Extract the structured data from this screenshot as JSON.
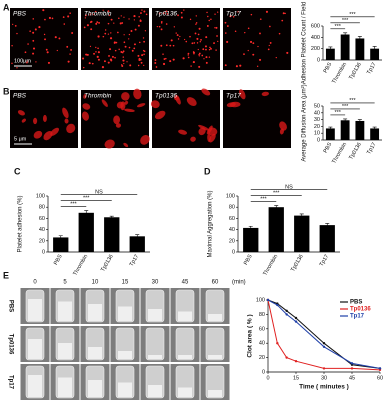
{
  "figure": {
    "panel_labels": [
      "A",
      "B",
      "C",
      "D",
      "E"
    ],
    "image_rows": [
      {
        "labels": [
          "PBS",
          "Thrombin",
          "Tp0136",
          "Tp17"
        ],
        "scale_bar": "100μm"
      },
      {
        "labels": [
          "PBS",
          "Thrombin",
          "Tp0136",
          "Tp17"
        ],
        "scale_bar": "5 μm"
      }
    ],
    "tube_grid": {
      "times": [
        "0",
        "5",
        "10",
        "15",
        "30",
        "45",
        "60"
      ],
      "unit": "(min)",
      "rows": [
        "PBS",
        "Tp0136",
        "Tp17"
      ]
    }
  },
  "chart_data": [
    {
      "type": "bar",
      "ylabel": "Adhesion Platelet Count / Field",
      "categories": [
        "PBS",
        "Thrombin",
        "Tp0136",
        "Tp17"
      ],
      "values": [
        200,
        450,
        380,
        200
      ],
      "errors": [
        30,
        30,
        35,
        40
      ],
      "color": "#000000",
      "ylim": [
        0,
        600
      ],
      "yticks": [
        0,
        200,
        400,
        600
      ],
      "annotations": [
        "***",
        "***",
        "***"
      ]
    },
    {
      "type": "bar",
      "ylabel": "Average Diffusion Area (μm²)",
      "categories": [
        "PBS",
        "Thrombin",
        "Tp0136",
        "Tp17"
      ],
      "values": [
        17,
        29,
        28,
        17
      ],
      "errors": [
        2,
        2,
        2,
        2
      ],
      "color": "#000000",
      "ylim": [
        0,
        50
      ],
      "yticks": [
        0,
        10,
        20,
        30,
        40,
        50
      ],
      "annotations": [
        "***",
        "***",
        "***"
      ]
    },
    {
      "type": "bar",
      "ylabel": "Platelet adhesion (%)",
      "categories": [
        "PBS",
        "Thrombin",
        "Tp0136",
        "Tp17"
      ],
      "values": [
        26,
        70,
        62,
        28
      ],
      "errors": [
        3,
        4,
        2,
        3
      ],
      "color": "#000000",
      "ylim": [
        0,
        100
      ],
      "yticks": [
        0,
        20,
        40,
        60,
        80,
        100
      ],
      "annotations": [
        "NS",
        "***",
        "***"
      ]
    },
    {
      "type": "bar",
      "ylabel": "Maximal Aggregation (%)",
      "categories": [
        "PBS",
        "Thrombin",
        "Tp0136",
        "Tp17"
      ],
      "values": [
        43,
        80,
        65,
        48
      ],
      "errors": [
        3,
        3,
        3,
        3
      ],
      "color": "#000000",
      "ylim": [
        0,
        100
      ],
      "yticks": [
        0,
        20,
        40,
        60,
        80,
        100
      ],
      "annotations": [
        "NS",
        "***",
        "***"
      ]
    },
    {
      "type": "line",
      "xlabel": "Time ( minutes )",
      "ylabel": "Clot area ( % )",
      "x": [
        0,
        5,
        10,
        15,
        30,
        45,
        60
      ],
      "xlim": [
        0,
        60
      ],
      "xticks": [
        0,
        15,
        30,
        45,
        60
      ],
      "ylim": [
        0,
        100
      ],
      "yticks": [
        0,
        20,
        40,
        60,
        80,
        100
      ],
      "series": [
        {
          "name": "PBS",
          "color": "#111111",
          "values": [
            100,
            95,
            85,
            75,
            40,
            10,
            5
          ]
        },
        {
          "name": "Tp0136",
          "color": "#e02020",
          "values": [
            100,
            40,
            20,
            15,
            5,
            5,
            3
          ]
        },
        {
          "name": "Tp17",
          "color": "#1f3fa8",
          "values": [
            100,
            93,
            80,
            70,
            35,
            12,
            5
          ]
        }
      ],
      "legend": "upper right"
    }
  ]
}
